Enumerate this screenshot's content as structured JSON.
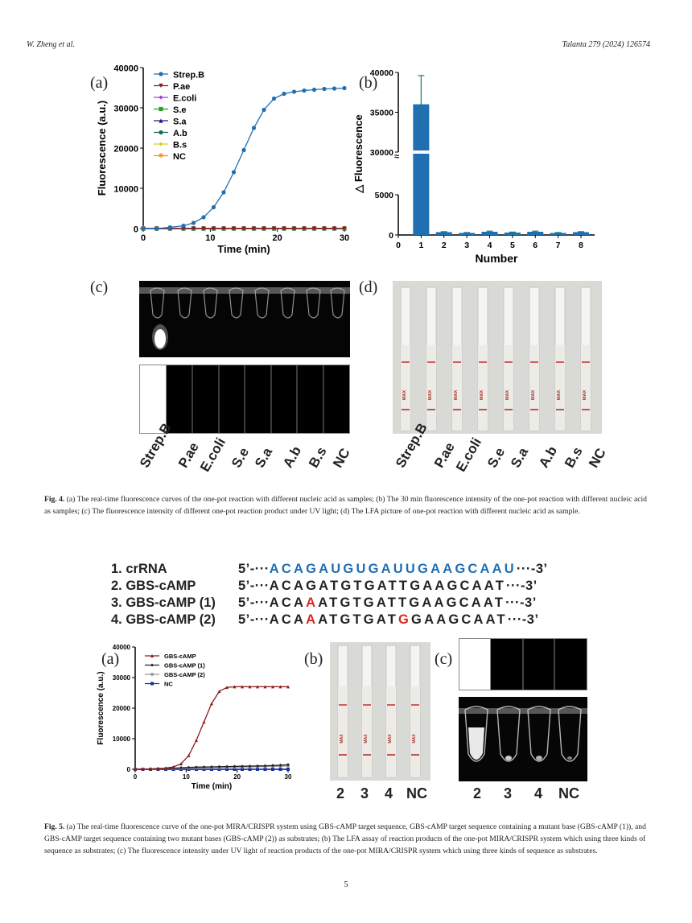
{
  "header": {
    "left": "W. Zheng et al.",
    "right": "Talanta 279 (2024) 126574"
  },
  "fig4": {
    "panel_labels": [
      "(a)",
      "(b)",
      "(c)",
      "(d)"
    ],
    "lane_labels": [
      "Strep.B",
      "P.ae",
      "E.coli",
      "S.e",
      "S.a",
      "A.b",
      "B.s",
      "NC"
    ],
    "strip_text": "MAX",
    "caption_label": "Fig. 4.",
    "caption": " (a) The real-time fluorescence curves of the one-pot reaction with different nucleic acid as samples; (b) The 30 min fluorescence intensity of the one-pot reaction with different nucleic acid as samples; (c) The fluorescence intensity of different one-pot reaction product under UV light; (d) The LFA picture of one-pot reaction with different nucleic acid as sample."
  },
  "fig5": {
    "panel_labels": [
      "(a)",
      "(b)",
      "(c)"
    ],
    "sequences": [
      {
        "name": "1. crRNA",
        "prefix": "5’-···",
        "seq": "ACAGAUGUGAUUGAAGCAAU",
        "suffix": "···-3’"
      },
      {
        "name": "2. GBS-cAMP",
        "prefix": "5’-···",
        "seq": "ACAGATGTGATTGAAGCAAT",
        "suffix": "···-3’"
      },
      {
        "name": "3. GBS-cAMP (1)",
        "prefix": "5’-···",
        "seq": "ACAAATGTGATTGAAGCAAT",
        "suffix": "···-3’"
      },
      {
        "name": "4. GBS-cAMP (2)",
        "prefix": "5’-···",
        "seq": "ACAAATGTGATGGAAGCAAT",
        "suffix": "···-3’"
      }
    ],
    "lane_labels": [
      "2",
      "3",
      "4",
      "NC"
    ],
    "strip_text": "MAX",
    "caption_label": "Fig. 5.",
    "caption": " (a) The real-time fluorescence curve of the one-pot MIRA/CRISPR system using GBS-cAMP target sequence, GBS-cAMP target sequence containing a mutant base (GBS-cAMP (1)), and GBS-cAMP target sequence containing two mutant bases (GBS-cAMP (2)) as substrates; (b) The LFA assay of reaction products of the one-pot MIRA/CRISPR system which using three kinds of sequence as substrates; (c) The fluorescence intensity under UV light of reaction products of the one-pot MIRA/CRISPR system which using three kinds of sequence as substrates."
  },
  "page_number": "5",
  "colors": {
    "blue": "#1f6fb2",
    "red": "#d62a20",
    "dark_red": "#8b1a1a"
  },
  "chart_data": [
    {
      "type": "line",
      "panel": "Fig. 4(a)",
      "xlabel": "Time (min)",
      "ylabel": "Fluorescence (a.u.)",
      "xlim": [
        0,
        30
      ],
      "ylim": [
        0,
        40000
      ],
      "xticks": [
        0,
        10,
        20,
        30
      ],
      "yticks": [
        0,
        10000,
        20000,
        30000,
        40000
      ],
      "x": [
        0,
        2,
        4,
        6,
        7.5,
        9,
        10.5,
        12,
        13.5,
        15,
        16.5,
        18,
        19.5,
        21,
        22.5,
        24,
        25.5,
        27,
        28.5,
        30
      ],
      "legend": "top-left",
      "series": [
        {
          "name": "Strep.B",
          "color": "#1f6fb2",
          "marker": "circle",
          "values": [
            0,
            0,
            300,
            700,
            1400,
            2800,
            5300,
            9000,
            14000,
            19500,
            25000,
            29500,
            32300,
            33500,
            34000,
            34300,
            34500,
            34700,
            34800,
            34900
          ]
        },
        {
          "name": "P.ae",
          "color": "#8b1a1a",
          "marker": "triangle-down",
          "values": [
            0,
            0,
            0,
            0,
            0,
            0,
            0,
            0,
            0,
            0,
            0,
            0,
            0,
            0,
            0,
            0,
            0,
            0,
            0,
            0
          ]
        },
        {
          "name": "E.coli",
          "color": "#a040d0",
          "marker": "diamond",
          "values": [
            0,
            0,
            0,
            0,
            0,
            0,
            0,
            0,
            0,
            0,
            0,
            0,
            0,
            0,
            0,
            0,
            0,
            0,
            0,
            0
          ]
        },
        {
          "name": "S.e",
          "color": "#2ca02c",
          "marker": "square",
          "values": [
            0,
            0,
            0,
            0,
            0,
            0,
            0,
            0,
            0,
            0,
            0,
            0,
            0,
            0,
            0,
            0,
            0,
            0,
            0,
            0
          ]
        },
        {
          "name": "S.a",
          "color": "#1a1a8b",
          "marker": "triangle",
          "values": [
            0,
            0,
            0,
            0,
            0,
            0,
            0,
            0,
            0,
            0,
            0,
            0,
            0,
            0,
            0,
            0,
            0,
            0,
            0,
            0
          ]
        },
        {
          "name": "A.b",
          "color": "#1a6b55",
          "marker": "circle",
          "values": [
            0,
            0,
            0,
            0,
            0,
            0,
            0,
            0,
            0,
            0,
            0,
            0,
            0,
            0,
            0,
            0,
            0,
            0,
            0,
            0
          ]
        },
        {
          "name": "B.s",
          "color": "#d8d020",
          "marker": "diamond",
          "values": [
            0,
            0,
            0,
            0,
            0,
            0,
            0,
            0,
            0,
            0,
            0,
            0,
            0,
            0,
            0,
            0,
            0,
            0,
            0,
            0
          ]
        },
        {
          "name": "NC",
          "color": "#ff8c1a",
          "marker": "star",
          "values": [
            0,
            0,
            0,
            0,
            0,
            0,
            0,
            0,
            0,
            0,
            0,
            0,
            0,
            0,
            0,
            0,
            0,
            0,
            0,
            0
          ]
        }
      ]
    },
    {
      "type": "bar",
      "panel": "Fig. 4(b)",
      "xlabel": "Number",
      "ylabel": "△ Fluorescence",
      "categories": [
        "1",
        "2",
        "3",
        "4",
        "5",
        "6",
        "7",
        "8"
      ],
      "xticks": [
        "0",
        "1",
        "2",
        "3",
        "4",
        "5",
        "6",
        "7",
        "8"
      ],
      "values": [
        36000,
        350,
        250,
        400,
        300,
        400,
        250,
        350
      ],
      "errors": [
        3600,
        60,
        50,
        80,
        60,
        80,
        50,
        60
      ],
      "axis_break": [
        5000,
        30000
      ],
      "yticks": [
        0,
        5000,
        30000,
        35000,
        40000
      ],
      "ylim": [
        0,
        40000
      ],
      "color": "#1f6fb2"
    },
    {
      "type": "line",
      "panel": "Fig. 5(a)",
      "xlabel": "Time (min)",
      "ylabel": "Fluorescence (a.u.)",
      "xlim": [
        0,
        30
      ],
      "ylim": [
        0,
        40000
      ],
      "xticks": [
        0,
        10,
        20,
        30
      ],
      "yticks": [
        0,
        10000,
        20000,
        30000,
        40000
      ],
      "x": [
        0,
        1.5,
        3,
        4.5,
        6,
        7.5,
        9,
        10.5,
        12,
        13.5,
        15,
        16.5,
        18,
        19.5,
        21,
        22.5,
        24,
        25.5,
        27,
        28.5,
        30
      ],
      "legend": "top-left",
      "series": [
        {
          "name": "GBS-cAMP",
          "color": "#8b1a1a",
          "marker": "triangle",
          "values": [
            0,
            50,
            100,
            200,
            400,
            800,
            1800,
            4500,
            9500,
            15500,
            21500,
            25500,
            26800,
            27000,
            27000,
            27000,
            27000,
            27000,
            27000,
            27000,
            27000
          ]
        },
        {
          "name": "GBS-cAMP (1)",
          "color": "#222222",
          "marker": "diamond",
          "values": [
            0,
            50,
            100,
            200,
            300,
            400,
            500,
            600,
            700,
            750,
            800,
            850,
            900,
            950,
            1000,
            1050,
            1100,
            1150,
            1250,
            1350,
            1500
          ]
        },
        {
          "name": "GBS-cAMP (2)",
          "color": "#999999",
          "marker": "circle",
          "values": [
            0,
            50,
            100,
            150,
            250,
            300,
            350,
            400,
            450,
            500,
            550,
            600,
            650,
            700,
            750,
            800,
            850,
            900,
            950,
            1000,
            1100
          ]
        },
        {
          "name": "NC",
          "color": "#1a2fa0",
          "marker": "square",
          "values": [
            0,
            0,
            0,
            0,
            0,
            0,
            0,
            0,
            0,
            0,
            0,
            0,
            0,
            0,
            0,
            0,
            0,
            0,
            0,
            0,
            0
          ]
        }
      ]
    }
  ]
}
